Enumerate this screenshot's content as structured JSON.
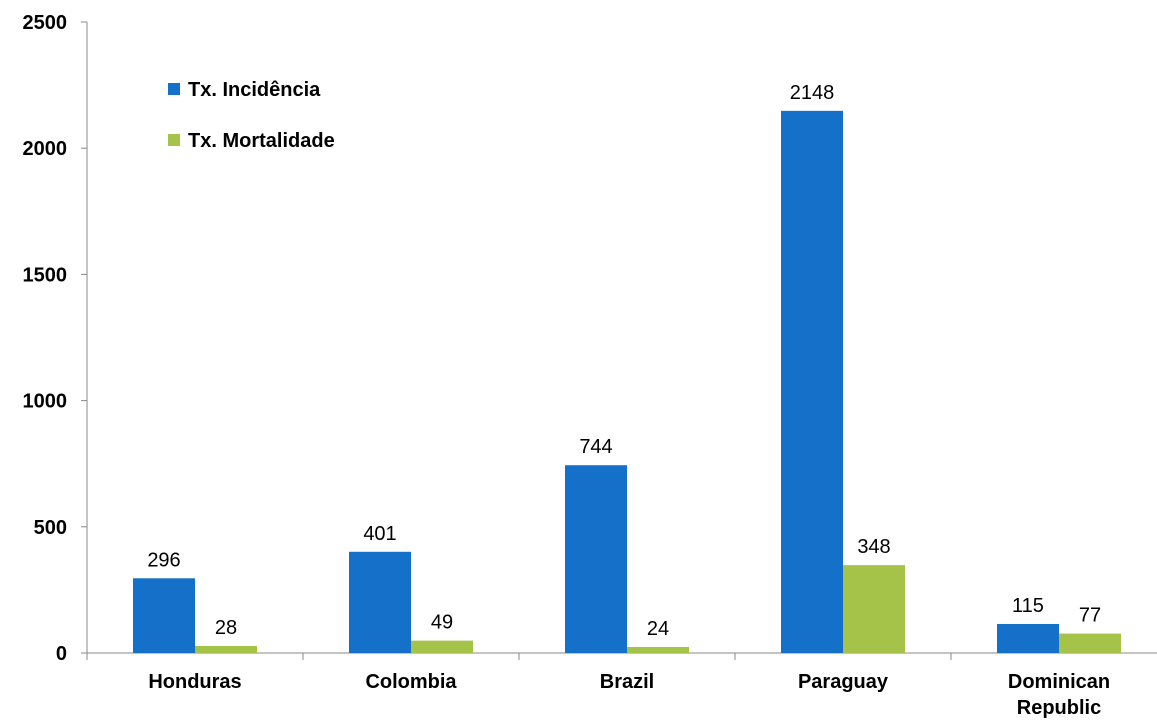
{
  "chart_data": {
    "type": "bar",
    "categories": [
      [
        "Honduras"
      ],
      [
        "Colombia"
      ],
      [
        "Brazil"
      ],
      [
        "Paraguay"
      ],
      [
        "Dominican",
        "Republic"
      ]
    ],
    "series": [
      {
        "name": "Tx. Incidência",
        "color": "#1570C9",
        "values": [
          296,
          401,
          744,
          2148,
          115
        ]
      },
      {
        "name": "Tx. Mortalidade",
        "color": "#A5C249",
        "values": [
          28,
          49,
          24,
          348,
          77
        ]
      }
    ],
    "ylim": [
      0,
      2500
    ],
    "yticks": [
      0,
      500,
      1000,
      1500,
      2000,
      2500
    ],
    "grid": false,
    "legend_position": "top-left",
    "title": "",
    "xlabel": "",
    "ylabel": ""
  }
}
